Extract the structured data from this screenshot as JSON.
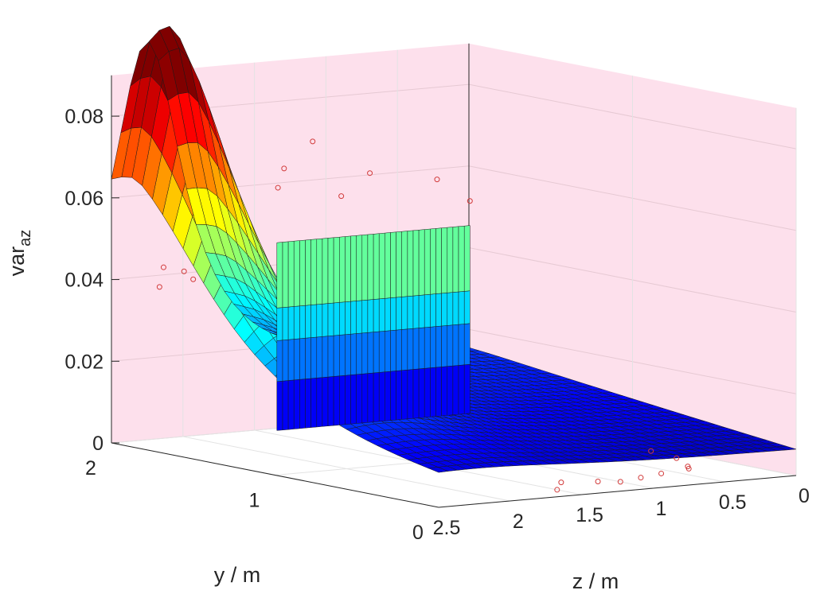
{
  "chart_data": {
    "type": "surface3d",
    "title": "",
    "xlabel": "z / m",
    "ylabel": "y / m",
    "zlabel_main": "var",
    "zlabel_sub": "az",
    "xlim": [
      0,
      2.5
    ],
    "ylim": [
      0,
      2
    ],
    "zlim": [
      0,
      0.09
    ],
    "x_ticks": [
      {
        "v": 0,
        "label": "0"
      },
      {
        "v": 0.5,
        "label": "0.5"
      },
      {
        "v": 1,
        "label": "1"
      },
      {
        "v": 1.5,
        "label": "1.5"
      },
      {
        "v": 2,
        "label": "2"
      },
      {
        "v": 2.5,
        "label": "2.5"
      }
    ],
    "y_ticks": [
      {
        "v": 0,
        "label": "0"
      },
      {
        "v": 1,
        "label": "1"
      },
      {
        "v": 2,
        "label": "2"
      }
    ],
    "z_ticks": [
      {
        "v": 0,
        "label": "0"
      },
      {
        "v": 0.02,
        "label": "0.02"
      },
      {
        "v": 0.04,
        "label": "0.04"
      },
      {
        "v": 0.06,
        "label": "0.06"
      },
      {
        "v": 0.08,
        "label": "0.08"
      }
    ],
    "grid": true,
    "back_wall_color": "#fde0ec",
    "colormap": "jet",
    "surface_model": {
      "peak_value": 0.089,
      "peak_z": 2.25,
      "peak_y": 1.85,
      "wall_plateau_value": 0.046,
      "wall_plateau_z_range": [
        0.05,
        1.4
      ]
    },
    "scatter_points": [
      {
        "z": 1.15,
        "y": 1.95,
        "v": 0.07
      },
      {
        "z": 1.35,
        "y": 1.95,
        "v": 0.064
      },
      {
        "z": 0.75,
        "y": 1.95,
        "v": 0.061
      },
      {
        "z": 0.28,
        "y": 1.95,
        "v": 0.058
      },
      {
        "z": 1.45,
        "y": 1.9,
        "v": 0.06
      },
      {
        "z": 0.95,
        "y": 1.95,
        "v": 0.056
      },
      {
        "z": 0.05,
        "y": 1.95,
        "v": 0.052
      },
      {
        "z": 2.45,
        "y": 1.6,
        "v": 0.045
      },
      {
        "z": 2.25,
        "y": 1.9,
        "v": 0.043
      },
      {
        "z": 2.45,
        "y": 1.75,
        "v": 0.04
      },
      {
        "z": 2.1,
        "y": 1.85,
        "v": 0.04
      },
      {
        "z": 0.1,
        "y": 0.8,
        "v": 0.0
      },
      {
        "z": 0.15,
        "y": 0.6,
        "v": 0.0
      },
      {
        "z": 0.3,
        "y": 0.4,
        "v": 0.0
      },
      {
        "z": 0.35,
        "y": 0.35,
        "v": 0.0
      },
      {
        "z": 0.6,
        "y": 0.3,
        "v": 0.0
      },
      {
        "z": 0.8,
        "y": 0.25,
        "v": 0.0
      },
      {
        "z": 1.0,
        "y": 0.2,
        "v": 0.0
      },
      {
        "z": 1.1,
        "y": 0.25,
        "v": 0.0
      },
      {
        "z": 1.3,
        "y": 0.3,
        "v": 0.0
      },
      {
        "z": 1.5,
        "y": 0.15,
        "v": 0.0
      }
    ]
  }
}
